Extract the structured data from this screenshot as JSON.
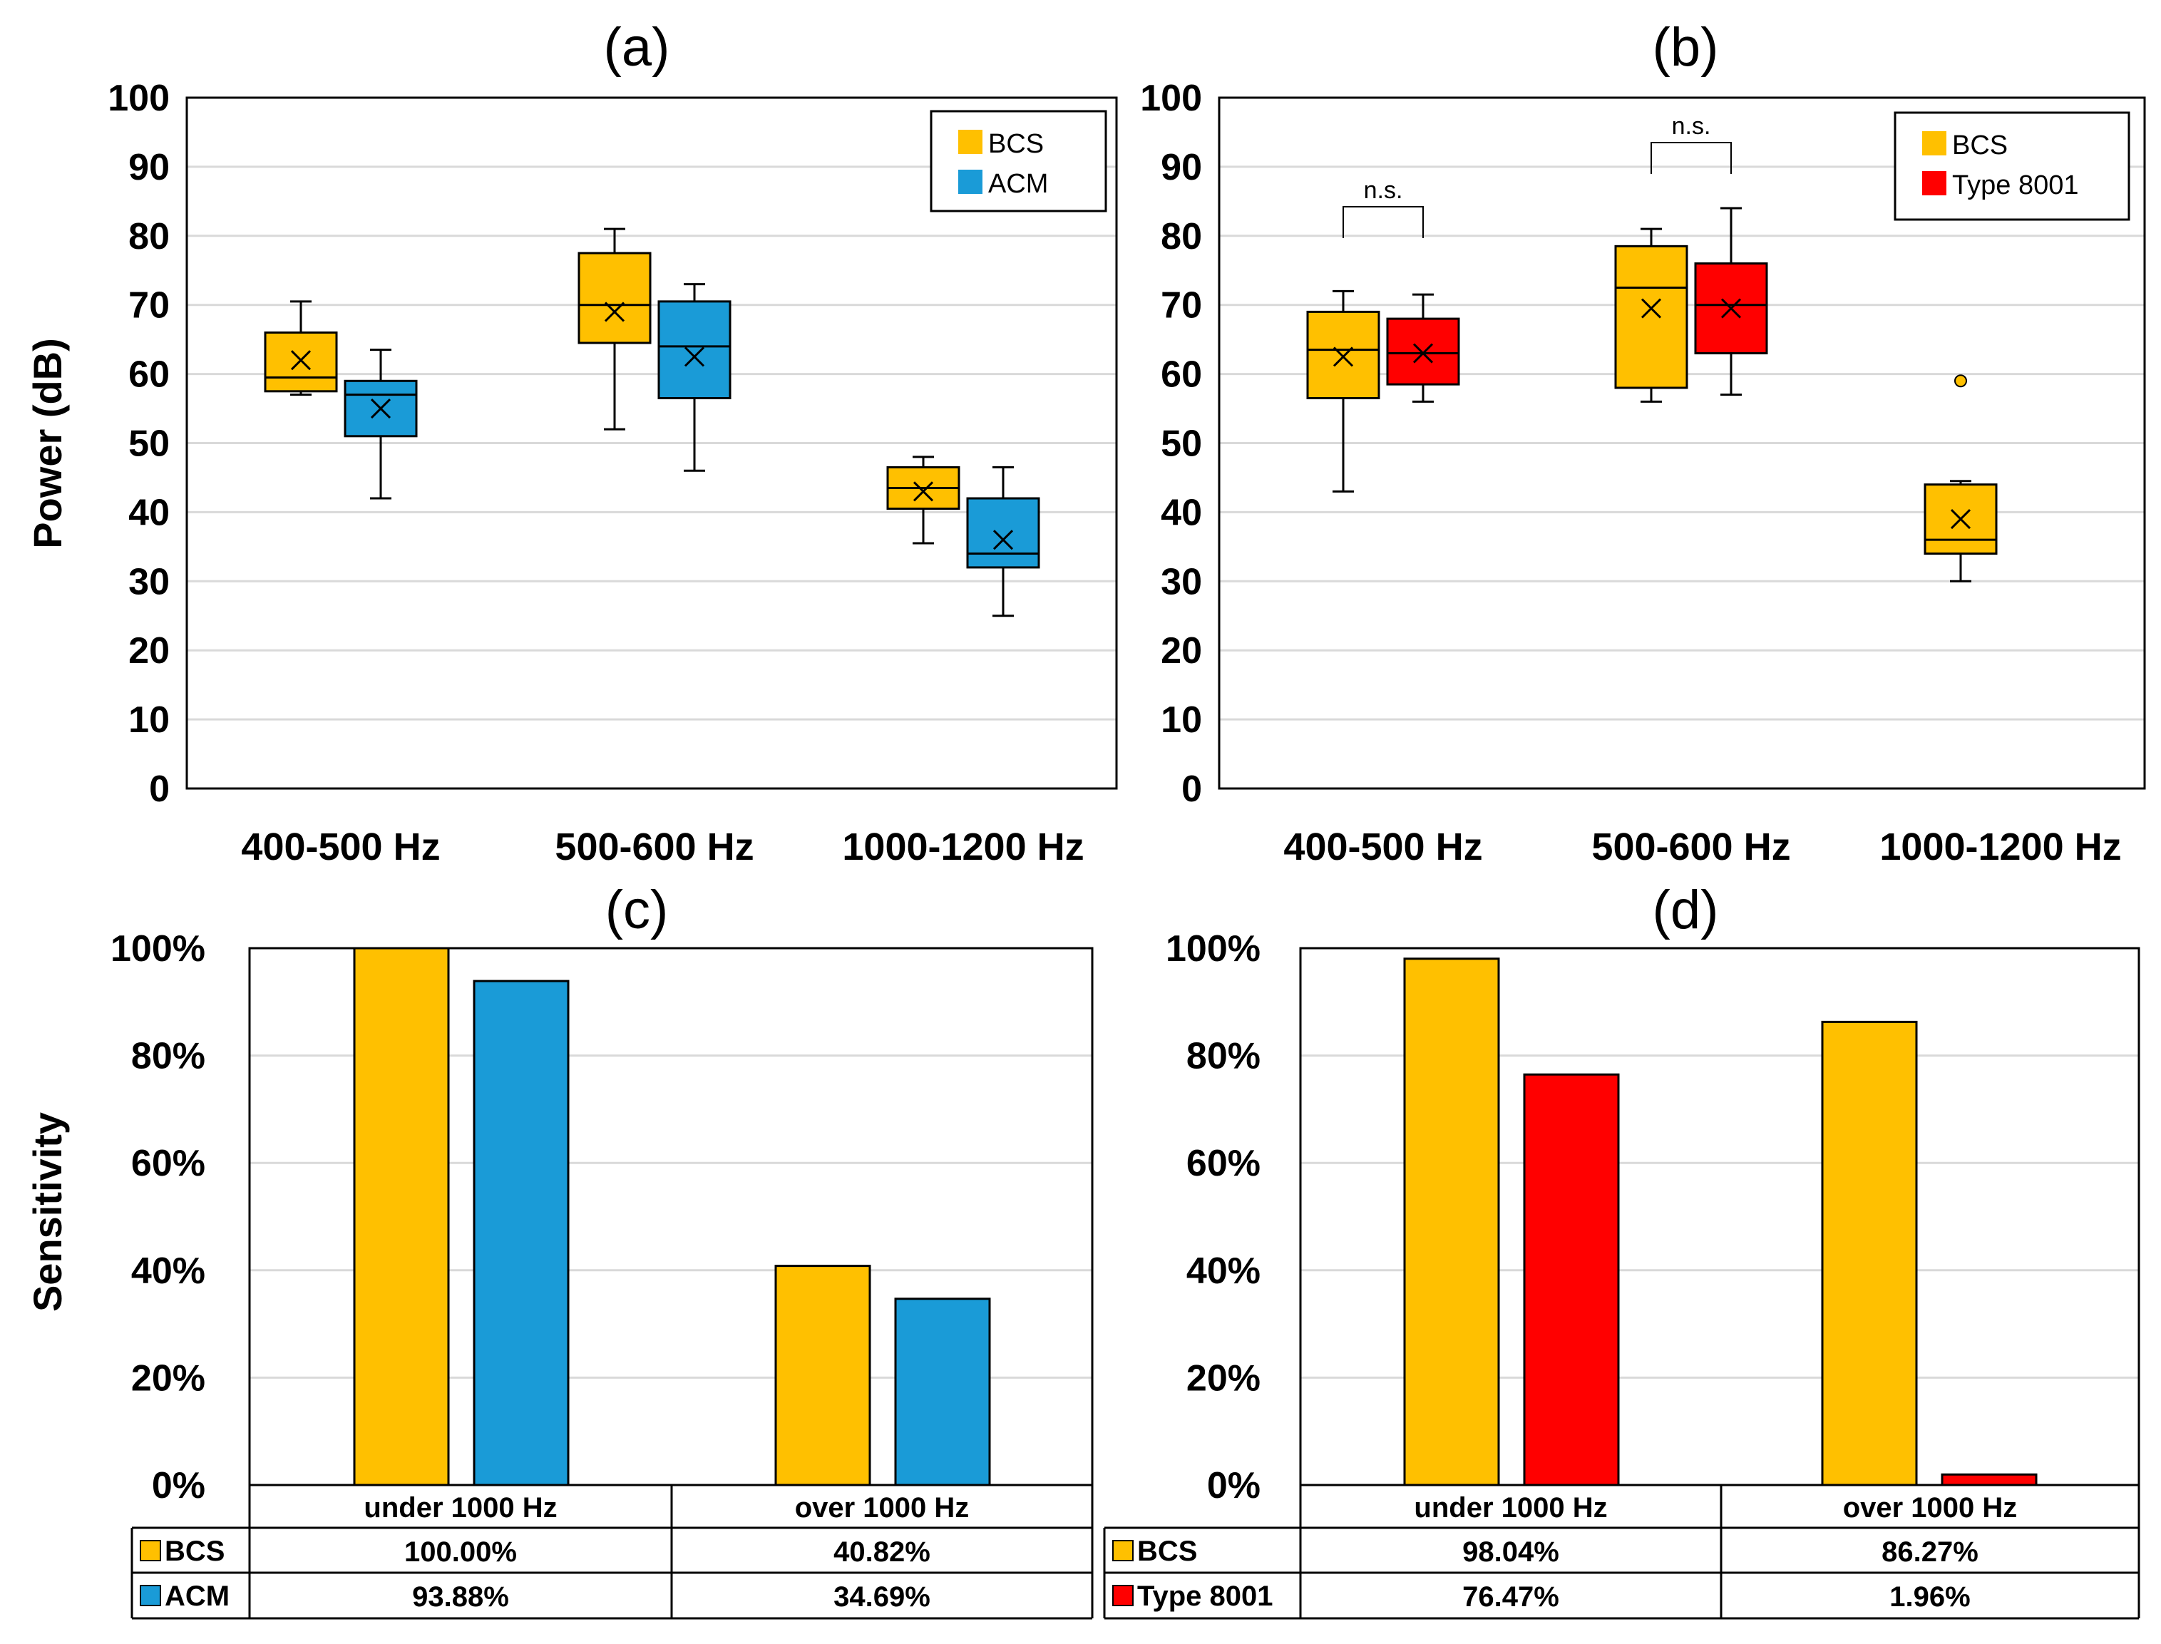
{
  "colors": {
    "bcs": "#FFC000",
    "acm": "#1A9BD7",
    "type8001": "#FF0000",
    "grid": "#D9D9D9",
    "frame": "#000000"
  },
  "chart_data": [
    {
      "id": "a",
      "type": "box",
      "title": "(a)",
      "ylabel": "Power (dB)",
      "ylim": [
        0,
        100
      ],
      "yticks": [
        "0",
        "10",
        "20",
        "30",
        "40",
        "50",
        "60",
        "70",
        "80",
        "90",
        "100"
      ],
      "categories": [
        "400-500 Hz",
        "500-600 Hz",
        "1000-1200 Hz"
      ],
      "legend": [
        "BCS",
        "ACM"
      ],
      "legend_position": "top-right",
      "series": [
        {
          "name": "BCS",
          "color": "#FFC000",
          "boxes": [
            {
              "min": 57,
              "q1": 57.5,
              "median": 59.5,
              "q3": 66,
              "max": 70.5,
              "mean": 62
            },
            {
              "min": 52,
              "q1": 64.5,
              "median": 70,
              "q3": 77.5,
              "max": 81,
              "mean": 69
            },
            {
              "min": 35.5,
              "q1": 40.5,
              "median": 43.5,
              "q3": 46.5,
              "max": 48,
              "mean": 43
            }
          ]
        },
        {
          "name": "ACM",
          "color": "#1A9BD7",
          "boxes": [
            {
              "min": 42,
              "q1": 51,
              "median": 57,
              "q3": 59,
              "max": 63.5,
              "mean": 55
            },
            {
              "min": 46,
              "q1": 56.5,
              "median": 64,
              "q3": 70.5,
              "max": 73,
              "mean": 62.5
            },
            {
              "min": 25,
              "q1": 32,
              "median": 34,
              "q3": 42,
              "max": 46.5,
              "mean": 36
            }
          ]
        }
      ]
    },
    {
      "id": "b",
      "type": "box",
      "title": "(b)",
      "ylim": [
        0,
        100
      ],
      "yticks": [
        "0",
        "10",
        "20",
        "30",
        "40",
        "50",
        "60",
        "70",
        "80",
        "90",
        "100"
      ],
      "categories": [
        "400-500 Hz",
        "500-600 Hz",
        "1000-1200 Hz"
      ],
      "legend": [
        "BCS",
        "Type 8001"
      ],
      "legend_position": "top-right",
      "annotations": [
        "n.s.",
        "n.s."
      ],
      "series": [
        {
          "name": "BCS",
          "color": "#FFC000",
          "boxes": [
            {
              "min": 43,
              "q1": 56.5,
              "median": 63.5,
              "q3": 69,
              "max": 72,
              "mean": 62.5
            },
            {
              "min": 56,
              "q1": 58,
              "median": 72.5,
              "q3": 78.5,
              "max": 81,
              "mean": 69.5
            },
            {
              "min": 30,
              "q1": 34,
              "median": 36,
              "q3": 44,
              "max": 44.5,
              "mean": 39,
              "outliers": [
                59
              ]
            }
          ]
        },
        {
          "name": "Type 8001",
          "color": "#FF0000",
          "boxes": [
            {
              "min": 56,
              "q1": 58.5,
              "median": 63,
              "q3": 68,
              "max": 71.5,
              "mean": 63
            },
            {
              "min": 57,
              "q1": 63,
              "median": 70,
              "q3": 76,
              "max": 84,
              "mean": 69.5
            },
            null
          ]
        }
      ]
    },
    {
      "id": "c",
      "type": "bar",
      "title": "(c)",
      "ylabel": "Sensitivity",
      "ylim": [
        0,
        100
      ],
      "yticks": [
        "0%",
        "20%",
        "40%",
        "60%",
        "80%",
        "100%"
      ],
      "categories": [
        "under 1000 Hz",
        "over 1000 Hz"
      ],
      "series": [
        {
          "name": "BCS",
          "color": "#FFC000",
          "values": [
            100.0,
            40.82
          ],
          "labels": [
            "100.00%",
            "40.82%"
          ]
        },
        {
          "name": "ACM",
          "color": "#1A9BD7",
          "values": [
            93.88,
            34.69
          ],
          "labels": [
            "93.88%",
            "34.69%"
          ]
        }
      ]
    },
    {
      "id": "d",
      "type": "bar",
      "title": "(d)",
      "ylim": [
        0,
        100
      ],
      "yticks": [
        "0%",
        "20%",
        "40%",
        "60%",
        "80%",
        "100%"
      ],
      "categories": [
        "under 1000 Hz",
        "over 1000 Hz"
      ],
      "series": [
        {
          "name": "BCS",
          "color": "#FFC000",
          "values": [
            98.04,
            86.27
          ],
          "labels": [
            "98.04%",
            "86.27%"
          ]
        },
        {
          "name": "Type 8001",
          "color": "#FF0000",
          "values": [
            76.47,
            1.96
          ],
          "labels": [
            "76.47%",
            "1.96%"
          ]
        }
      ]
    }
  ]
}
